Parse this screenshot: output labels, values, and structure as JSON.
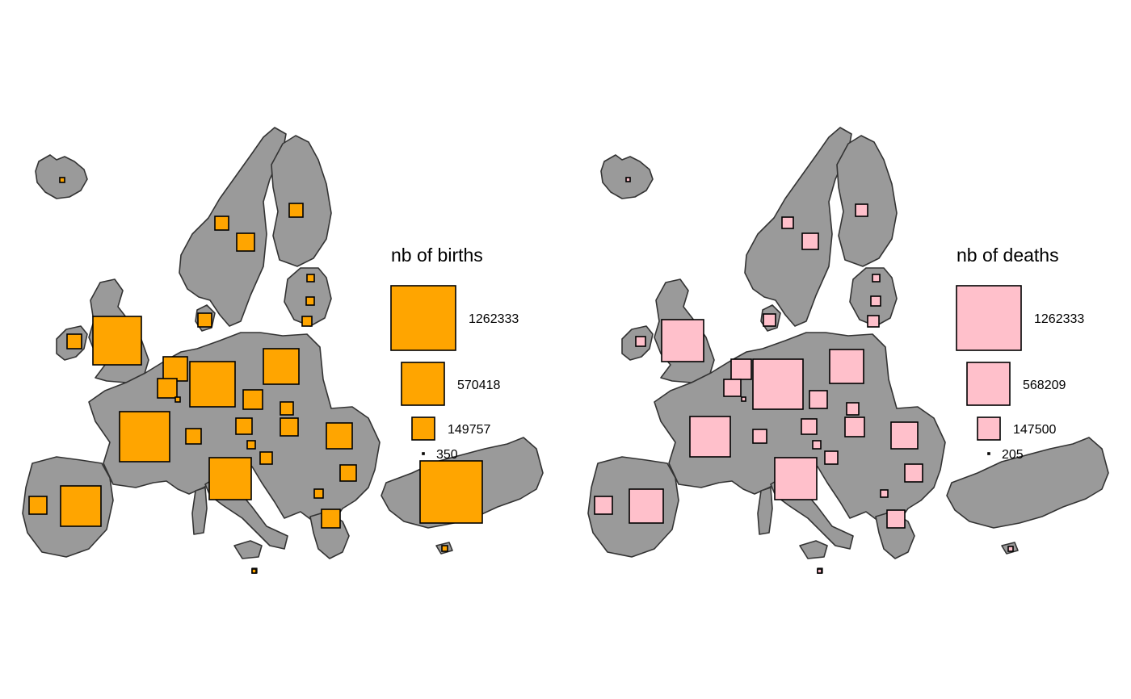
{
  "maps": [
    {
      "id": "births",
      "legend": {
        "title": "nb of births",
        "entries": [
          {
            "value": 1262333,
            "label": "1262333"
          },
          {
            "value": 570418,
            "label": "570418"
          },
          {
            "value": 149757,
            "label": "149757"
          },
          {
            "value": 350,
            "label": "350"
          }
        ]
      },
      "colors": {
        "fill": "#ffa500",
        "land": "#9a9a9a",
        "border": "#333333"
      }
    },
    {
      "id": "deaths",
      "legend": {
        "title": "nb of deaths",
        "entries": [
          {
            "value": 1262333,
            "label": "1262333"
          },
          {
            "value": 568209,
            "label": "568209"
          },
          {
            "value": 147500,
            "label": "147500"
          },
          {
            "value": 205,
            "label": "205"
          }
        ]
      },
      "colors": {
        "fill": "#ffc0cb",
        "land": "#9a9a9a",
        "border": "#333333"
      }
    }
  ]
}
